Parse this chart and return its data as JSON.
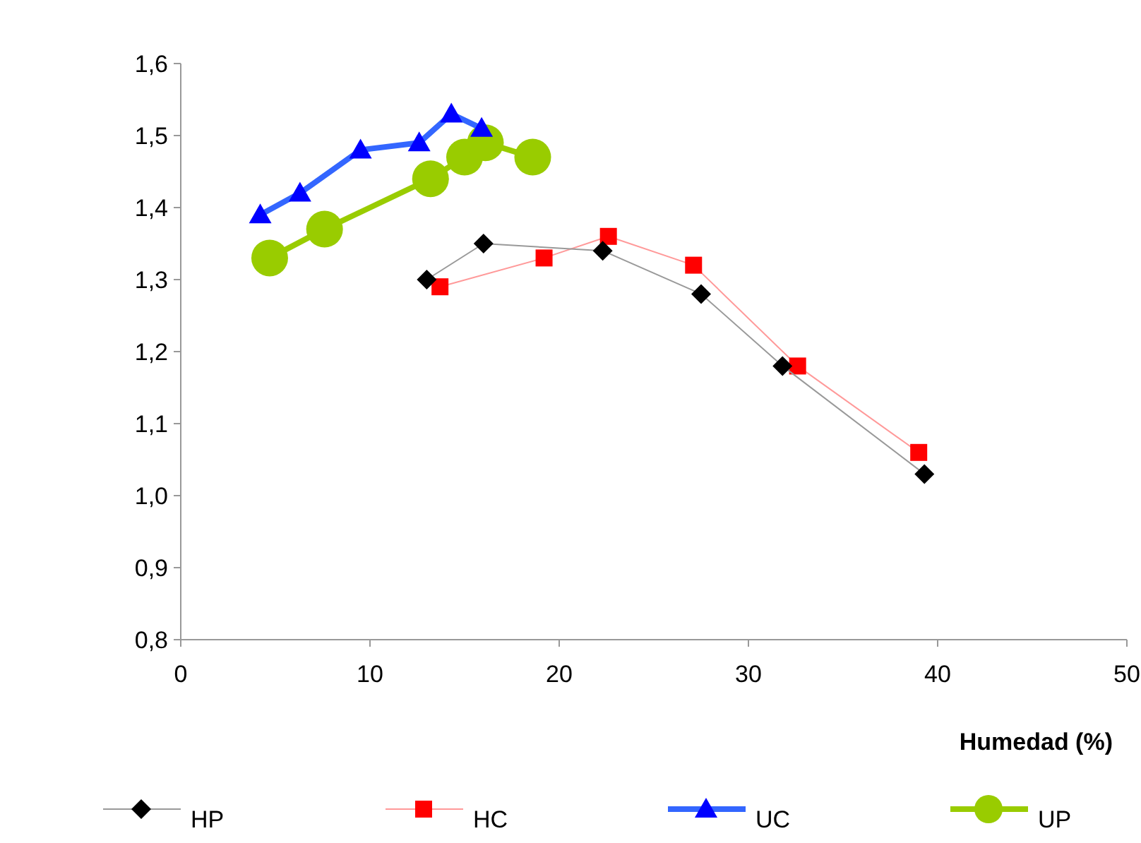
{
  "chart_data": {
    "type": "line",
    "xlabel": "Humedad (%)",
    "xlim": [
      0,
      50
    ],
    "xticks": [
      0,
      10,
      20,
      30,
      40,
      50
    ],
    "ylim": [
      0.8,
      1.6
    ],
    "yticks": [
      {
        "value": 0.8,
        "label": "0,8"
      },
      {
        "value": 0.9,
        "label": "0,9"
      },
      {
        "value": 1.0,
        "label": "1,0"
      },
      {
        "value": 1.1,
        "label": "1,1"
      },
      {
        "value": 1.2,
        "label": "1,2"
      },
      {
        "value": 1.3,
        "label": "1,3"
      },
      {
        "value": 1.4,
        "label": "1,4"
      },
      {
        "value": 1.5,
        "label": "1,5"
      },
      {
        "value": 1.6,
        "label": "1,6"
      }
    ],
    "grid": false,
    "legend": "bottom",
    "series": [
      {
        "name": "HP",
        "color": "#000000",
        "marker": "diamond",
        "x": [
          13.0,
          16.0,
          22.3,
          27.5,
          31.8,
          39.3
        ],
        "values": [
          1.3,
          1.35,
          1.34,
          1.28,
          1.18,
          1.03
        ]
      },
      {
        "name": "HC",
        "color": "#ff0000",
        "marker": "square",
        "x": [
          13.7,
          19.2,
          22.6,
          27.1,
          32.6,
          39.0
        ],
        "values": [
          1.29,
          1.33,
          1.36,
          1.32,
          1.18,
          1.06
        ]
      },
      {
        "name": "UC",
        "color": "#0000ff",
        "marker": "triangle",
        "x": [
          4.2,
          6.3,
          9.5,
          12.6,
          14.3,
          15.9
        ],
        "values": [
          1.39,
          1.42,
          1.48,
          1.49,
          1.53,
          1.51
        ]
      },
      {
        "name": "UP",
        "color": "#99cc00",
        "marker": "circle",
        "x": [
          4.7,
          7.6,
          13.2,
          15.0,
          16.1,
          18.6
        ],
        "values": [
          1.33,
          1.37,
          1.44,
          1.47,
          1.49,
          1.47
        ]
      }
    ]
  }
}
